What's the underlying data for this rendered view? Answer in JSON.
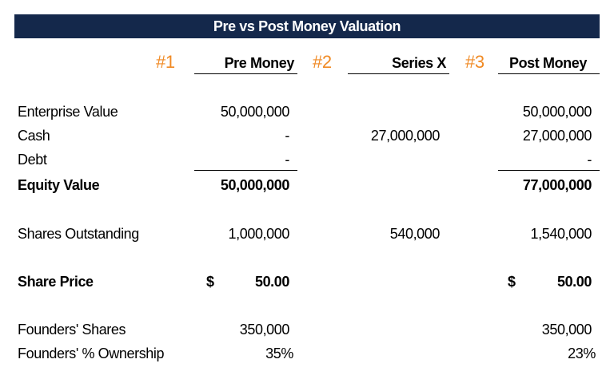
{
  "header": {
    "title": "Pre vs Post Money Valuation"
  },
  "columns": [
    {
      "marker": "#1",
      "label": "Pre Money"
    },
    {
      "marker": "#2",
      "label": "Series X"
    },
    {
      "marker": "#3",
      "label": "Post Money"
    }
  ],
  "rows": [
    {
      "label": "Enterprise Value",
      "bold": false,
      "pre": "50,000,000",
      "post": "50,000,000"
    },
    {
      "label": "Cash",
      "bold": false,
      "pre": "-",
      "series": "27,000,000",
      "post": "27,000,000"
    },
    {
      "label": "Debt",
      "bold": false,
      "pre": "-",
      "post": "-"
    },
    {
      "label": "Equity Value",
      "bold": true,
      "pre": "50,000,000",
      "post": "77,000,000"
    },
    {
      "label": "Shares Outstanding",
      "bold": false,
      "pre": "1,000,000",
      "series": "540,000",
      "post": "1,540,000"
    },
    {
      "label": "Share Price",
      "bold": true,
      "currency": "$",
      "pre": "50.00",
      "post": "50.00"
    },
    {
      "label": "Founders' Shares",
      "bold": false,
      "pre": "350,000",
      "post": "350,000"
    },
    {
      "label": "Founders' % Ownership",
      "bold": false,
      "pre": "35%",
      "post": "23%"
    }
  ]
}
